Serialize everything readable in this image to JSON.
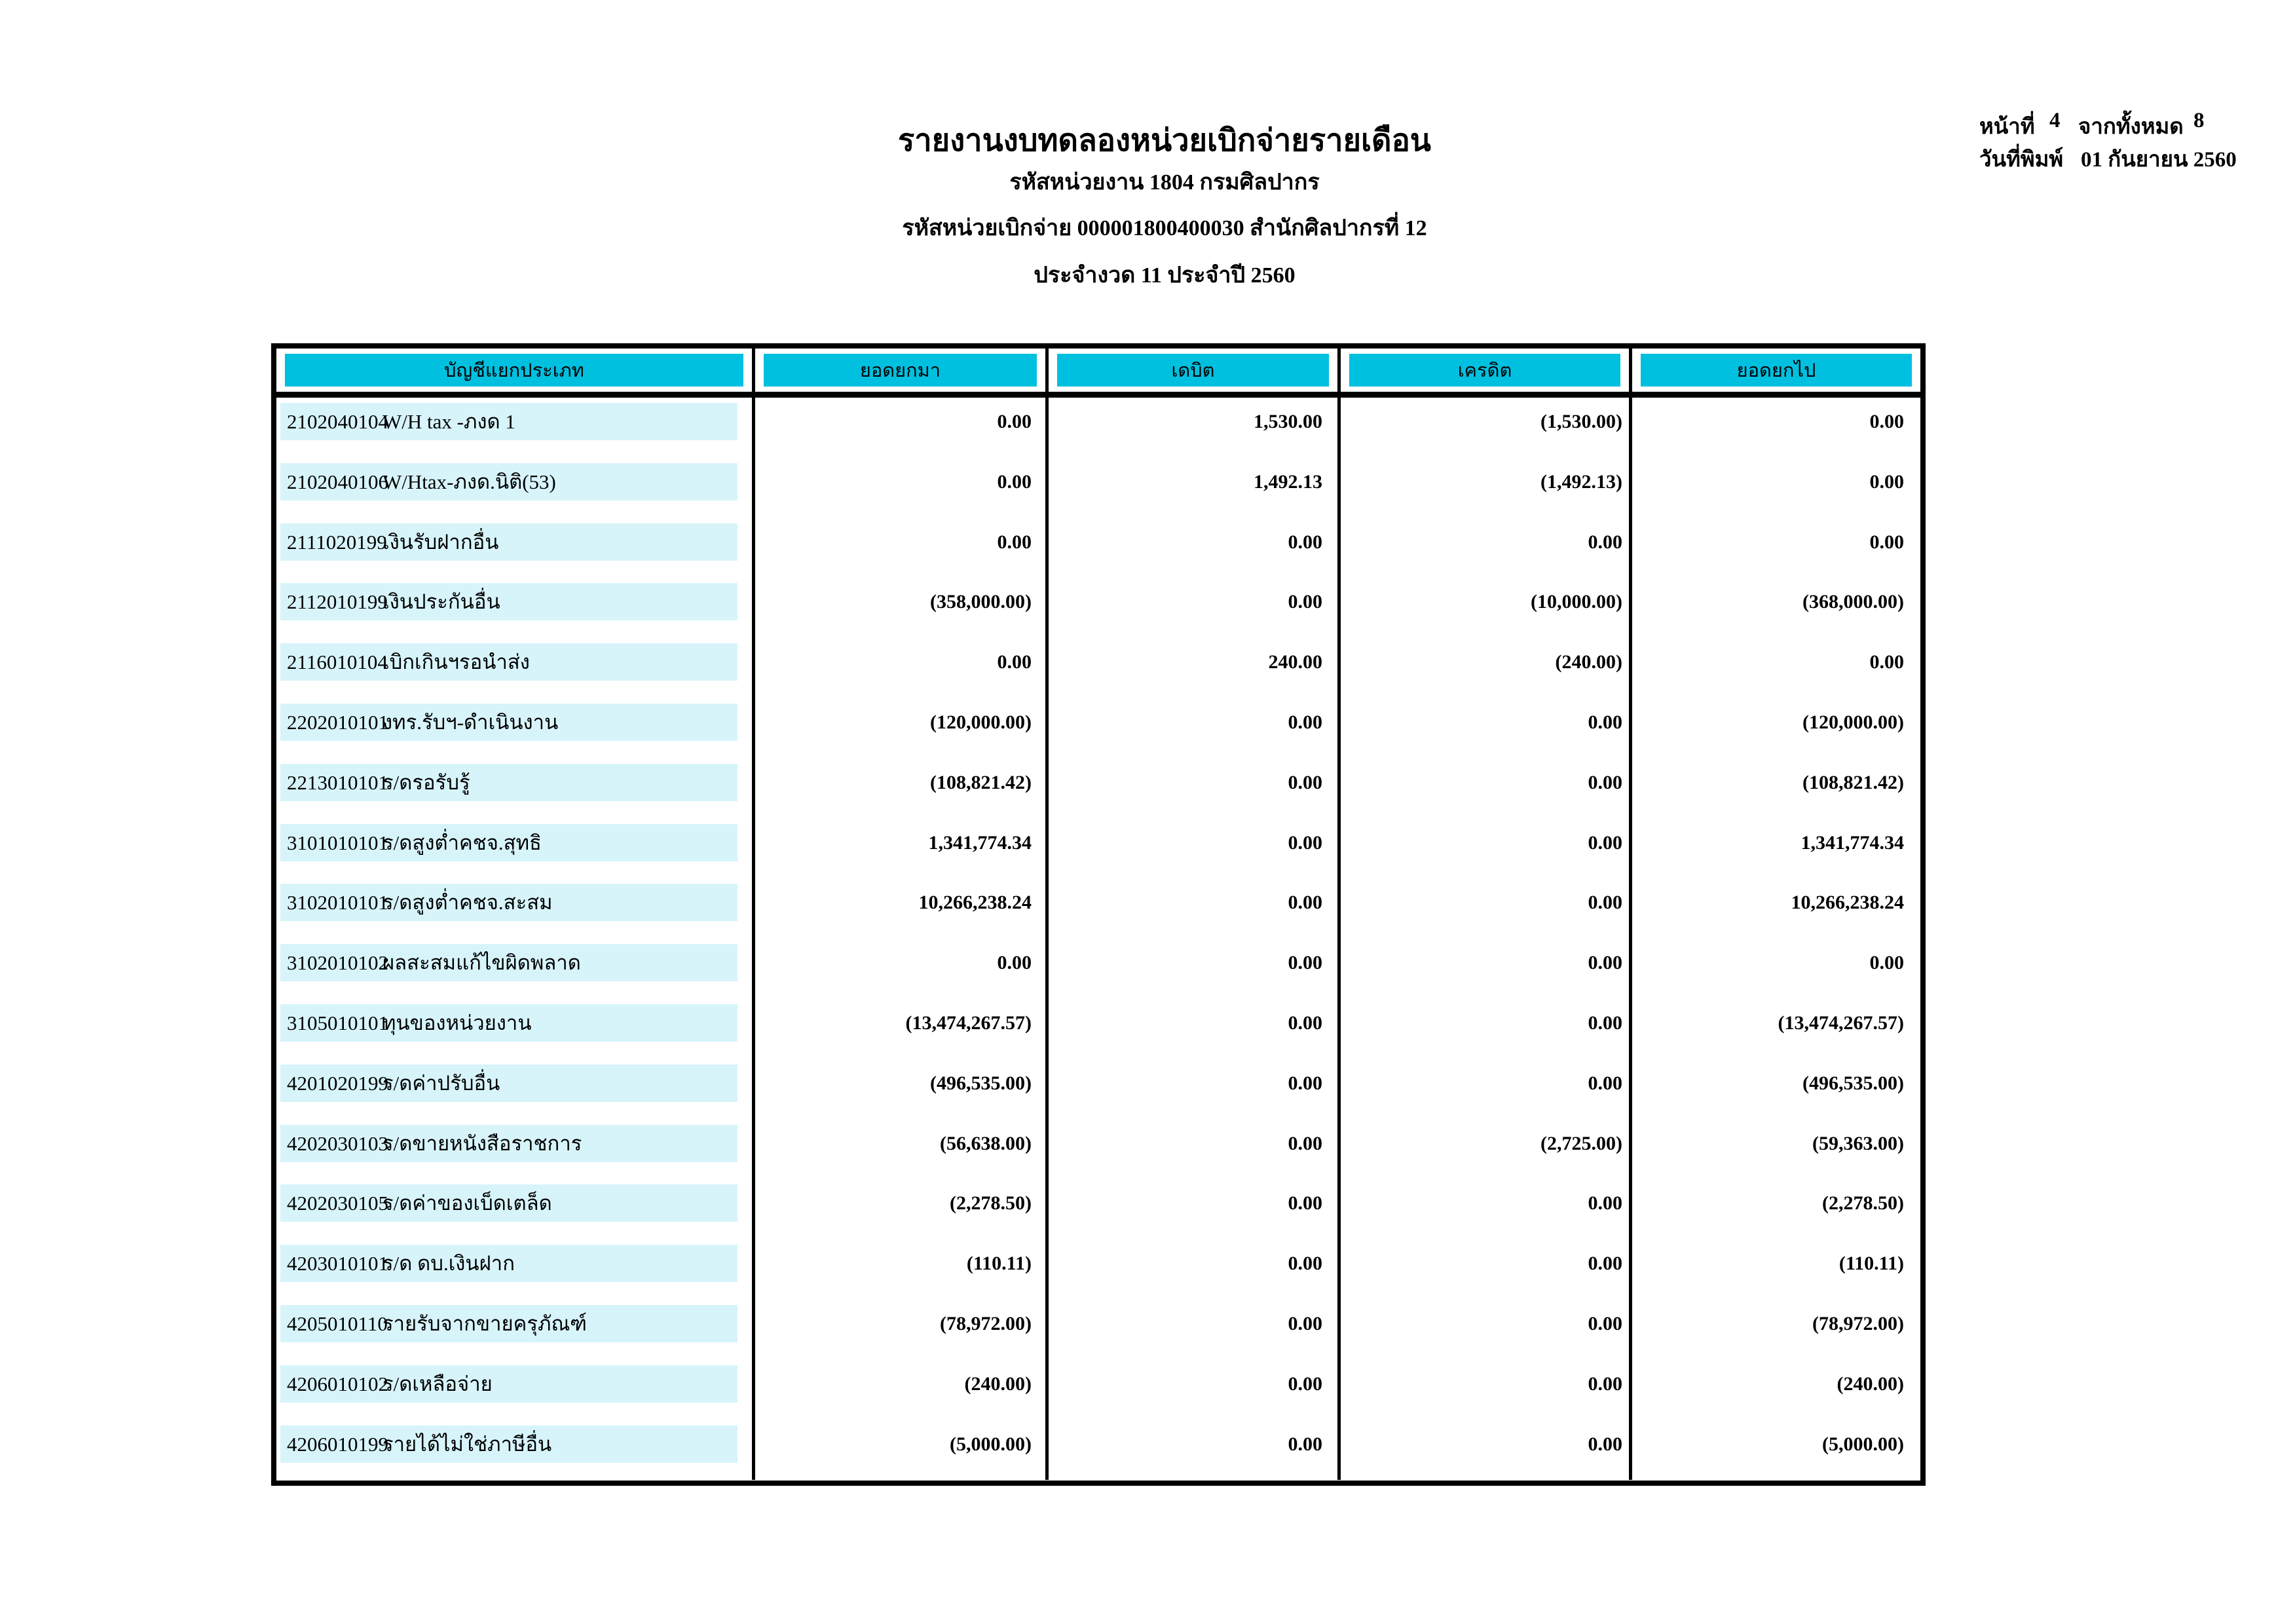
{
  "header": {
    "title": "รายงานงบทดลองหน่วยเบิกจ่ายรายเดือน",
    "org_line": "รหัสหน่วยงาน 1804 กรมศิลปากร",
    "unit_line": "รหัสหน่วยเบิกจ่าย 000001800400030 สำนักศิลปากรที่ 12",
    "period_line": "ประจำงวด 11 ประจำปี 2560"
  },
  "page_info": {
    "page_label": "หน้าที่",
    "page_number": "4",
    "total_label": "จากทั้งหมด",
    "total_pages": "8",
    "print_date_label": "วันที่พิมพ์",
    "print_date": "01 กันยายน 2560"
  },
  "table": {
    "headers": [
      "บัญชีแยกประเภท",
      "ยอดยกมา",
      "เดบิต",
      "เครดิต",
      "ยอดยกไป"
    ],
    "rows": [
      {
        "code": "2102040104",
        "name": "W/H tax -ภงด 1",
        "carry": "0.00",
        "debit": "1,530.00",
        "credit": "(1,530.00)",
        "balance": "0.00"
      },
      {
        "code": "2102040106",
        "name": "W/Htax-ภงด.นิติ(53)",
        "carry": "0.00",
        "debit": "1,492.13",
        "credit": "(1,492.13)",
        "balance": "0.00"
      },
      {
        "code": "2111020199",
        "name": "เงินรับฝากอื่น",
        "carry": "0.00",
        "debit": "0.00",
        "credit": "0.00",
        "balance": "0.00"
      },
      {
        "code": "2112010199",
        "name": "เงินประกันอื่น",
        "carry": "(358,000.00)",
        "debit": "0.00",
        "credit": "(10,000.00)",
        "balance": "(368,000.00)"
      },
      {
        "code": "2116010104",
        "name": "เบิกเกินฯรอนำส่ง",
        "carry": "0.00",
        "debit": "240.00",
        "credit": "(240.00)",
        "balance": "0.00"
      },
      {
        "code": "2202010101",
        "name": "งทร.รับฯ-ดำเนินงาน",
        "carry": "(120,000.00)",
        "debit": "0.00",
        "credit": "0.00",
        "balance": "(120,000.00)"
      },
      {
        "code": "2213010101",
        "name": "ร/ดรอรับรู้",
        "carry": "(108,821.42)",
        "debit": "0.00",
        "credit": "0.00",
        "balance": "(108,821.42)"
      },
      {
        "code": "3101010101",
        "name": "ร/ดสูงต่ำคชจ.สุทธิ",
        "carry": "1,341,774.34",
        "debit": "0.00",
        "credit": "0.00",
        "balance": "1,341,774.34"
      },
      {
        "code": "3102010101",
        "name": "ร/ดสูงต่ำคชจ.สะสม",
        "carry": "10,266,238.24",
        "debit": "0.00",
        "credit": "0.00",
        "balance": "10,266,238.24"
      },
      {
        "code": "3102010102",
        "name": "ผลสะสมแก้ไขผิดพลาด",
        "carry": "0.00",
        "debit": "0.00",
        "credit": "0.00",
        "balance": "0.00"
      },
      {
        "code": "3105010101",
        "name": "ทุนของหน่วยงาน",
        "carry": "(13,474,267.57)",
        "debit": "0.00",
        "credit": "0.00",
        "balance": "(13,474,267.57)"
      },
      {
        "code": "4201020199",
        "name": "ร/ดค่าปรับอื่น",
        "carry": "(496,535.00)",
        "debit": "0.00",
        "credit": "0.00",
        "balance": "(496,535.00)"
      },
      {
        "code": "4202030103",
        "name": "ร/ดขายหนังสือราชการ",
        "carry": "(56,638.00)",
        "debit": "0.00",
        "credit": "(2,725.00)",
        "balance": "(59,363.00)"
      },
      {
        "code": "4202030105",
        "name": "ร/ดค่าของเบ็ดเตล็ด",
        "carry": "(2,278.50)",
        "debit": "0.00",
        "credit": "0.00",
        "balance": "(2,278.50)"
      },
      {
        "code": "4203010101",
        "name": "ร/ด ดบ.เงินฝาก",
        "carry": "(110.11)",
        "debit": "0.00",
        "credit": "0.00",
        "balance": "(110.11)"
      },
      {
        "code": "4205010110",
        "name": "รายรับจากขายครุภัณฑ์",
        "carry": "(78,972.00)",
        "debit": "0.00",
        "credit": "0.00",
        "balance": "(78,972.00)"
      },
      {
        "code": "4206010102",
        "name": "ร/ดเหลือจ่าย",
        "carry": "(240.00)",
        "debit": "0.00",
        "credit": "0.00",
        "balance": "(240.00)"
      },
      {
        "code": "4206010199",
        "name": "รายได้ไม่ใช่ภาษีอื่น",
        "carry": "(5,000.00)",
        "debit": "0.00",
        "credit": "0.00",
        "balance": "(5,000.00)"
      }
    ]
  },
  "colors": {
    "header_bg": "#00C0E0",
    "row_band_bg": "#D7F4FB"
  }
}
